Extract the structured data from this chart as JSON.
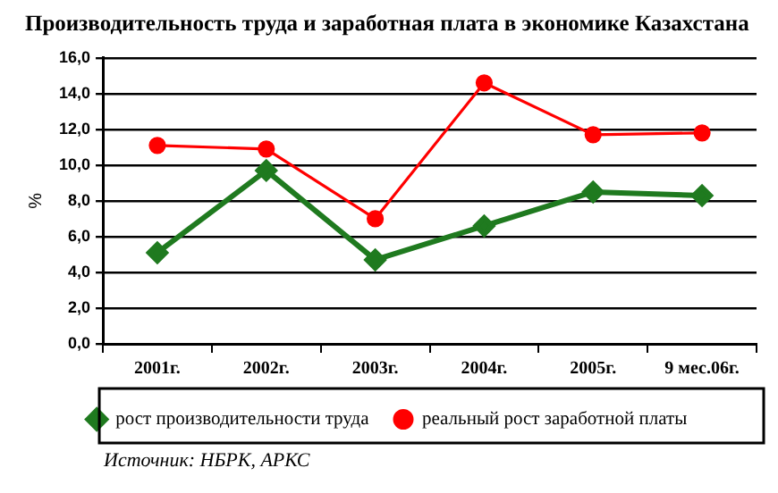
{
  "chart_data": {
    "type": "line",
    "title": "Производительность труда и заработная плата в экономике Казахстана",
    "ylabel": "%",
    "categories": [
      "2001г.",
      "2002г.",
      "2003г.",
      "2004г.",
      "2005г.",
      "9 мес.06г."
    ],
    "series": [
      {
        "name": "рост производительности труда",
        "color": "#1f7a1f",
        "marker": "diamond",
        "values": [
          5.1,
          9.7,
          4.7,
          6.6,
          8.5,
          8.3
        ]
      },
      {
        "name": "реальный рост заработной платы",
        "color": "#ff0000",
        "marker": "circle",
        "values": [
          11.1,
          10.9,
          7.0,
          14.6,
          11.7,
          11.8
        ]
      }
    ],
    "ylim": [
      0,
      16
    ],
    "yticks": [
      {
        "value": 0,
        "label": "0,0"
      },
      {
        "value": 2,
        "label": "2,0"
      },
      {
        "value": 4,
        "label": "4,0"
      },
      {
        "value": 6,
        "label": "6,0"
      },
      {
        "value": 8,
        "label": "8,0"
      },
      {
        "value": 10,
        "label": "10,0"
      },
      {
        "value": 12,
        "label": "12,0"
      },
      {
        "value": 14,
        "label": "14,0"
      },
      {
        "value": 16,
        "label": "16,0"
      }
    ],
    "grid": "y",
    "legend": "bottom",
    "line_style": "solid",
    "annotations": [
      "Источник: НБРК, АРКС"
    ]
  }
}
